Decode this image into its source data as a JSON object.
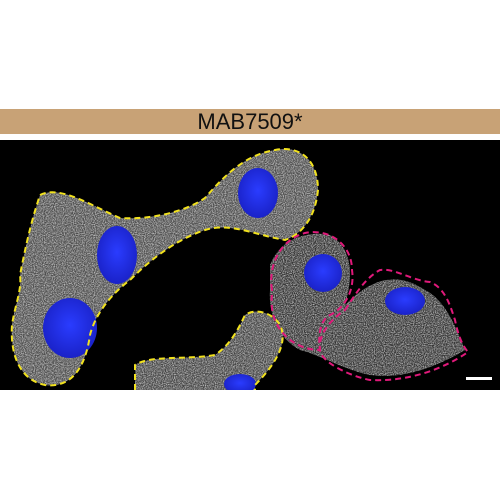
{
  "panel": {
    "label": "MAB7509*",
    "header_color": "#c8a276"
  },
  "micrograph": {
    "background": "#000000",
    "stain_color": "#d9d9d9",
    "nucleus_color": "#1f2ee8",
    "outline_colors": {
      "group_a": "#f2e21e",
      "group_b": "#e0197a"
    },
    "scale_bar_color": "#ffffff"
  }
}
